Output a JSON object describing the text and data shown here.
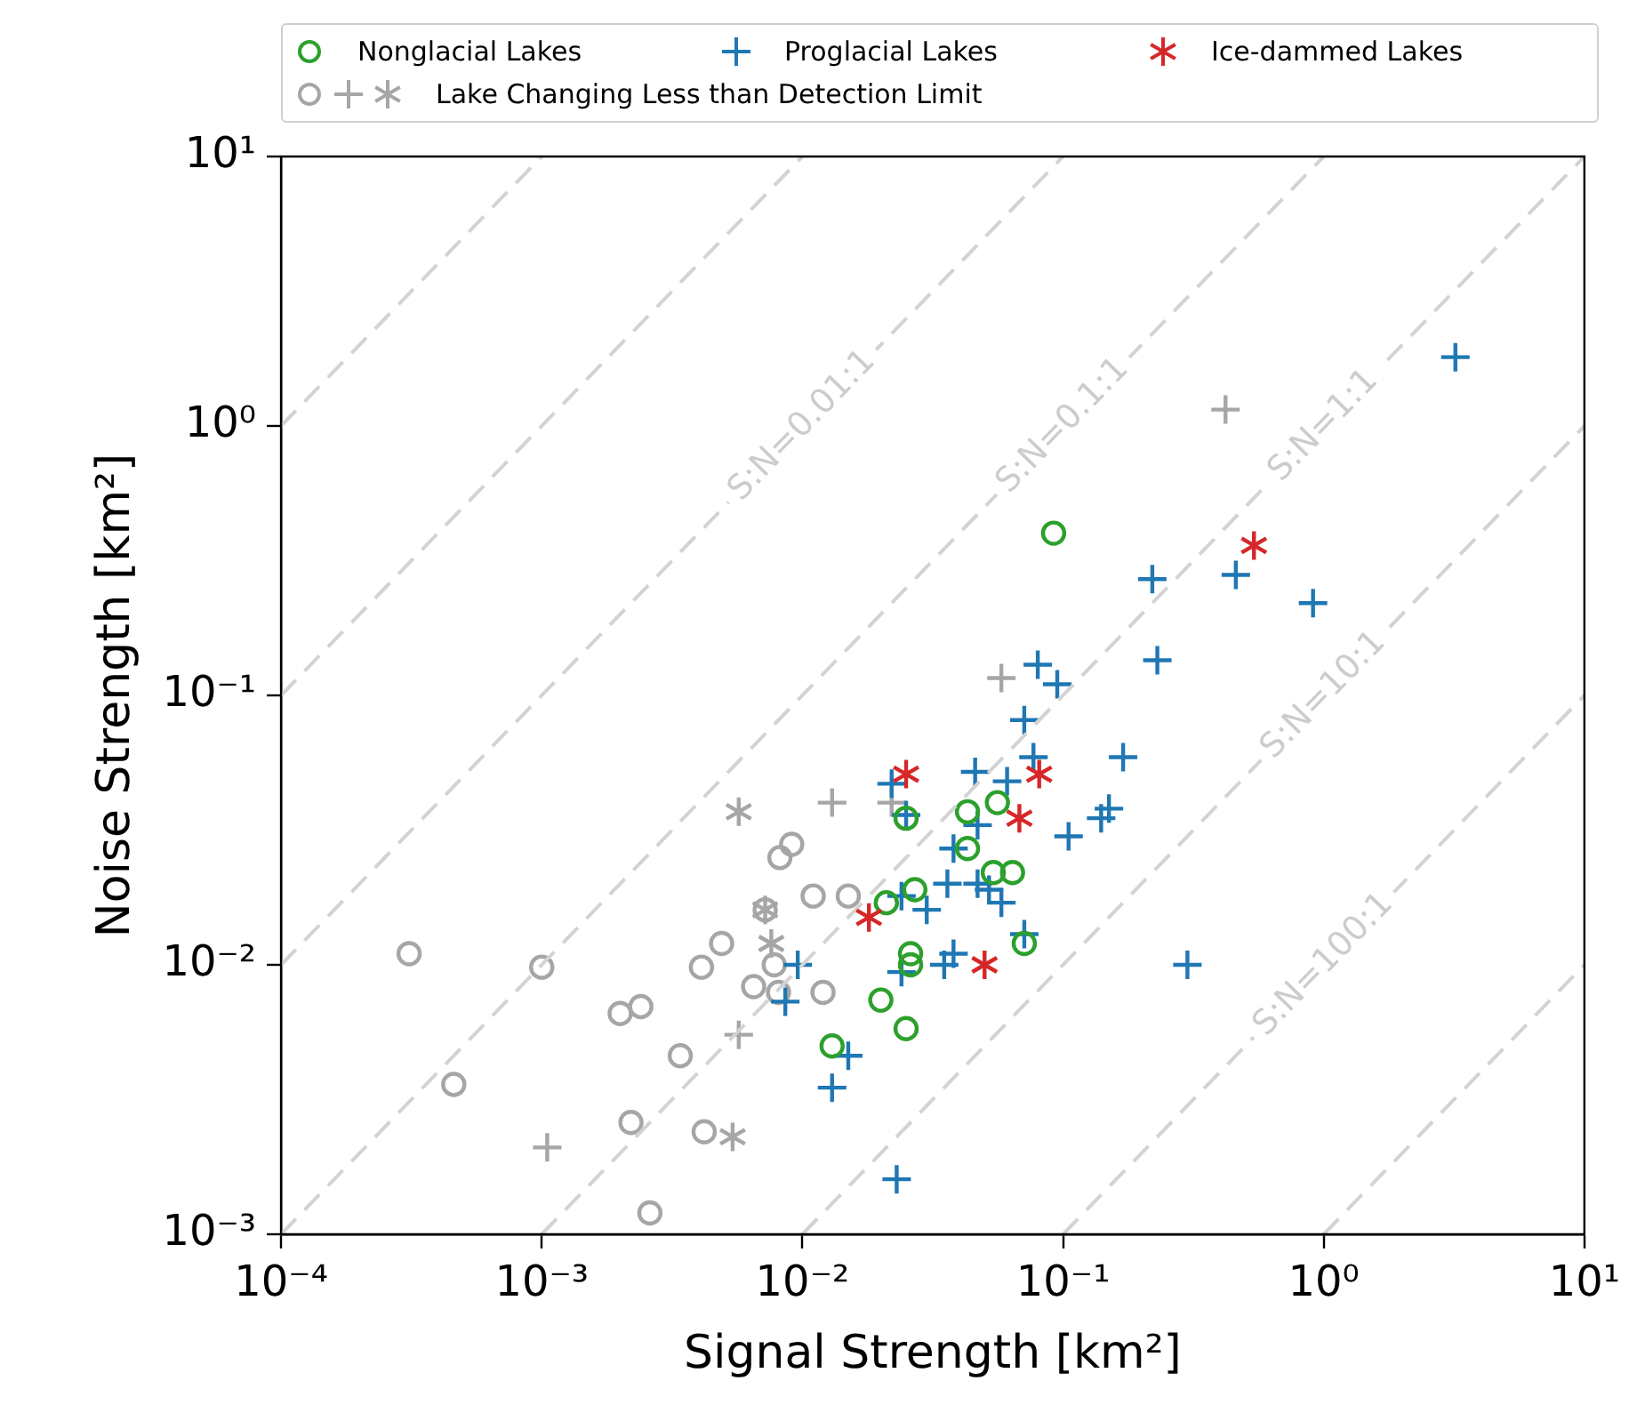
{
  "chart_data": {
    "type": "scatter",
    "xlabel": "Signal Strength [km²]",
    "ylabel": "Noise Strength [km²]",
    "log": "xy",
    "grid": false,
    "legend": "top",
    "xlim": [
      0.0001,
      10
    ],
    "ylim": [
      0.001,
      10
    ],
    "xticks": [
      {
        "value": 0.0001,
        "label": "10⁻⁴"
      },
      {
        "value": 0.001,
        "label": "10⁻³"
      },
      {
        "value": 0.01,
        "label": "10⁻²"
      },
      {
        "value": 0.1,
        "label": "10⁻¹"
      },
      {
        "value": 1,
        "label": "10⁰"
      },
      {
        "value": 10,
        "label": "10¹"
      }
    ],
    "yticks": [
      {
        "value": 0.001,
        "label": "10⁻³"
      },
      {
        "value": 0.01,
        "label": "10⁻²"
      },
      {
        "value": 0.1,
        "label": "10⁻¹"
      },
      {
        "value": 1,
        "label": "10⁰"
      },
      {
        "value": 10,
        "label": "10¹"
      }
    ],
    "series": [
      {
        "type": "line",
        "color": "#d3d3d3",
        "line_style": "dashed",
        "x": [
          0.0001,
          0.001
        ],
        "values": [
          1,
          10
        ]
      },
      {
        "type": "line",
        "color": "#d3d3d3",
        "line_style": "dashed",
        "x": [
          0.0001,
          0.01
        ],
        "values": [
          0.1,
          10
        ]
      },
      {
        "type": "line",
        "color": "#d3d3d3",
        "line_style": "dashed",
        "x": [
          0.0001,
          0.1
        ],
        "values": [
          0.01,
          10
        ]
      },
      {
        "type": "line",
        "color": "#d3d3d3",
        "line_style": "dashed",
        "x": [
          0.0001,
          1
        ],
        "values": [
          0.001,
          10
        ]
      },
      {
        "type": "line",
        "color": "#d3d3d3",
        "line_style": "dashed",
        "x": [
          0.001,
          10
        ],
        "values": [
          0.001,
          10
        ]
      },
      {
        "type": "line",
        "color": "#d3d3d3",
        "line_style": "dashed",
        "x": [
          0.01,
          10
        ],
        "values": [
          0.001,
          1
        ]
      },
      {
        "type": "line",
        "color": "#d3d3d3",
        "line_style": "dashed",
        "x": [
          0.1,
          10
        ],
        "values": [
          0.001,
          0.1
        ]
      },
      {
        "type": "line",
        "color": "#d3d3d3",
        "line_style": "dashed",
        "x": [
          1,
          10
        ],
        "values": [
          0.001,
          0.01
        ]
      },
      {
        "name": "Nonglacial Lakes",
        "color": "#2ca02c",
        "marker": "circle",
        "x": [
          0.025,
          0.043,
          0.056,
          0.043,
          0.054,
          0.064,
          0.027,
          0.021,
          0.026,
          0.026,
          0.02,
          0.025,
          0.013,
          0.071,
          0.092
        ],
        "values": [
          0.035,
          0.037,
          0.04,
          0.027,
          0.022,
          0.022,
          0.019,
          0.017,
          0.011,
          0.01,
          0.0074,
          0.0058,
          0.005,
          0.012,
          0.4
        ]
      },
      {
        "name": "Proglacial Lakes",
        "color": "#1f77b4",
        "marker": "cross",
        "x": [
          3.2,
          0.22,
          0.46,
          0.91,
          0.23,
          0.3,
          0.08,
          0.095,
          0.071,
          0.077,
          0.17,
          0.046,
          0.061,
          0.022,
          0.025,
          0.047,
          0.105,
          0.15,
          0.14,
          0.038,
          0.036,
          0.047,
          0.052,
          0.024,
          0.03,
          0.058,
          0.071,
          0.0096,
          0.024,
          0.038,
          0.035,
          0.0086,
          0.015,
          0.013,
          0.023
        ],
        "values": [
          1.8,
          0.27,
          0.28,
          0.22,
          0.135,
          0.01,
          0.13,
          0.11,
          0.081,
          0.059,
          0.059,
          0.052,
          0.048,
          0.047,
          0.036,
          0.033,
          0.03,
          0.038,
          0.035,
          0.027,
          0.02,
          0.02,
          0.019,
          0.018,
          0.016,
          0.017,
          0.013,
          0.01,
          0.0094,
          0.011,
          0.01,
          0.0073,
          0.0046,
          0.0035,
          0.0016
        ]
      },
      {
        "name": "Ice-dammed Lakes",
        "color": "#d62728",
        "x": [
          0.025,
          0.081,
          0.068,
          0.018,
          0.05,
          0.54
        ],
        "values": [
          0.051,
          0.051,
          0.035,
          0.015,
          0.01,
          0.36
        ]
      },
      {
        "name": "Lake Changing Less than Detection Limit",
        "color": "#a6a6a6",
        "marker": "circle",
        "x": [
          0.00031,
          0.001,
          0.00046,
          0.002,
          0.0024,
          0.0034,
          0.0022,
          0.0042,
          0.0026,
          0.0041,
          0.0049,
          0.0065,
          0.0078,
          0.0081,
          0.0082,
          0.0091,
          0.011,
          0.015,
          0.012,
          0.0072
        ],
        "values": [
          0.011,
          0.0098,
          0.0036,
          0.0066,
          0.007,
          0.0046,
          0.0026,
          0.0024,
          0.0012,
          0.0098,
          0.012,
          0.0083,
          0.01,
          0.0079,
          0.025,
          0.028,
          0.018,
          0.018,
          0.0079,
          0.016
        ]
      },
      {
        "color": "#a6a6a6",
        "marker": "cross",
        "x": [
          0.013,
          0.022,
          0.058,
          0.42,
          0.0057,
          0.00105
        ],
        "values": [
          0.04,
          0.04,
          0.116,
          1.15,
          0.0055,
          0.0021
        ]
      },
      {
        "color": "#a6a6a6",
        "x": [
          0.0057,
          0.0072,
          0.0076,
          0.0054
        ],
        "values": [
          0.037,
          0.016,
          0.012,
          0.0023
        ]
      }
    ],
    "annotations": [
      {
        "text": "S:N=0.01:1",
        "x": 0.01,
        "y": 1
      },
      {
        "text": "S:N=0.1:1",
        "x": 0.1,
        "y": 1
      },
      {
        "text": "S:N=1:1",
        "x": 1,
        "y": 1
      },
      {
        "text": "S:N=10:1",
        "x": 1,
        "y": 0.1
      },
      {
        "text": "S:N=100:1",
        "x": 1,
        "y": 0.01
      }
    ]
  }
}
